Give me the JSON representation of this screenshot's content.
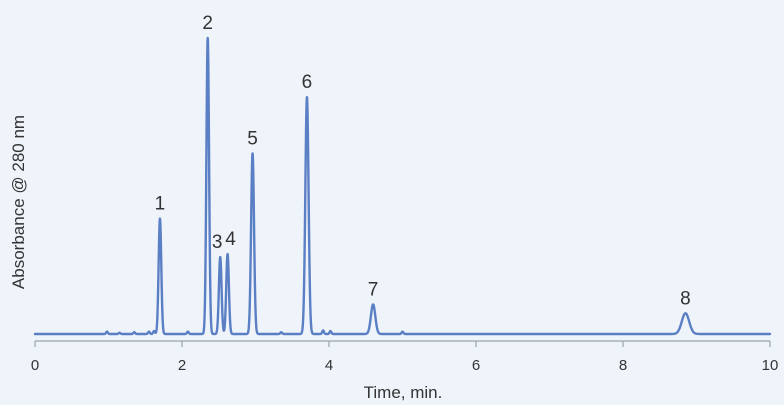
{
  "chart_data": {
    "type": "line",
    "title": "",
    "xlabel": "Time, min.",
    "ylabel": "Absorbance @ 280 nm",
    "xlim": [
      0,
      10
    ],
    "x_ticks": [
      0,
      2,
      4,
      6,
      8,
      10
    ],
    "ylim": [
      0,
      1.05
    ],
    "grid": false,
    "legend": "none",
    "y_tick_labels_shown": false,
    "series": [
      {
        "color": "#5b7fc4",
        "peaks": [
          {
            "label": "1",
            "time": 1.7,
            "height": 0.39,
            "width": 0.018
          },
          {
            "label": "2",
            "time": 2.35,
            "height": 1.0,
            "width": 0.018
          },
          {
            "label": "3",
            "time": 2.52,
            "height": 0.26,
            "width": 0.018
          },
          {
            "label": "4",
            "time": 2.62,
            "height": 0.27,
            "width": 0.018
          },
          {
            "label": "5",
            "time": 2.96,
            "height": 0.61,
            "width": 0.02
          },
          {
            "label": "6",
            "time": 3.7,
            "height": 0.8,
            "width": 0.022
          },
          {
            "label": "7",
            "time": 4.6,
            "height": 0.1,
            "width": 0.03
          },
          {
            "label": "8",
            "time": 8.85,
            "height": 0.07,
            "width": 0.05
          }
        ],
        "minor_bumps": [
          {
            "time": 0.98,
            "height": 0.008
          },
          {
            "time": 1.15,
            "height": 0.004
          },
          {
            "time": 1.35,
            "height": 0.006
          },
          {
            "time": 1.55,
            "height": 0.008
          },
          {
            "time": 1.62,
            "height": 0.01
          },
          {
            "time": 2.08,
            "height": 0.008
          },
          {
            "time": 3.35,
            "height": 0.006
          },
          {
            "time": 3.92,
            "height": 0.012
          },
          {
            "time": 4.02,
            "height": 0.01
          },
          {
            "time": 5.0,
            "height": 0.008
          }
        ]
      }
    ]
  }
}
